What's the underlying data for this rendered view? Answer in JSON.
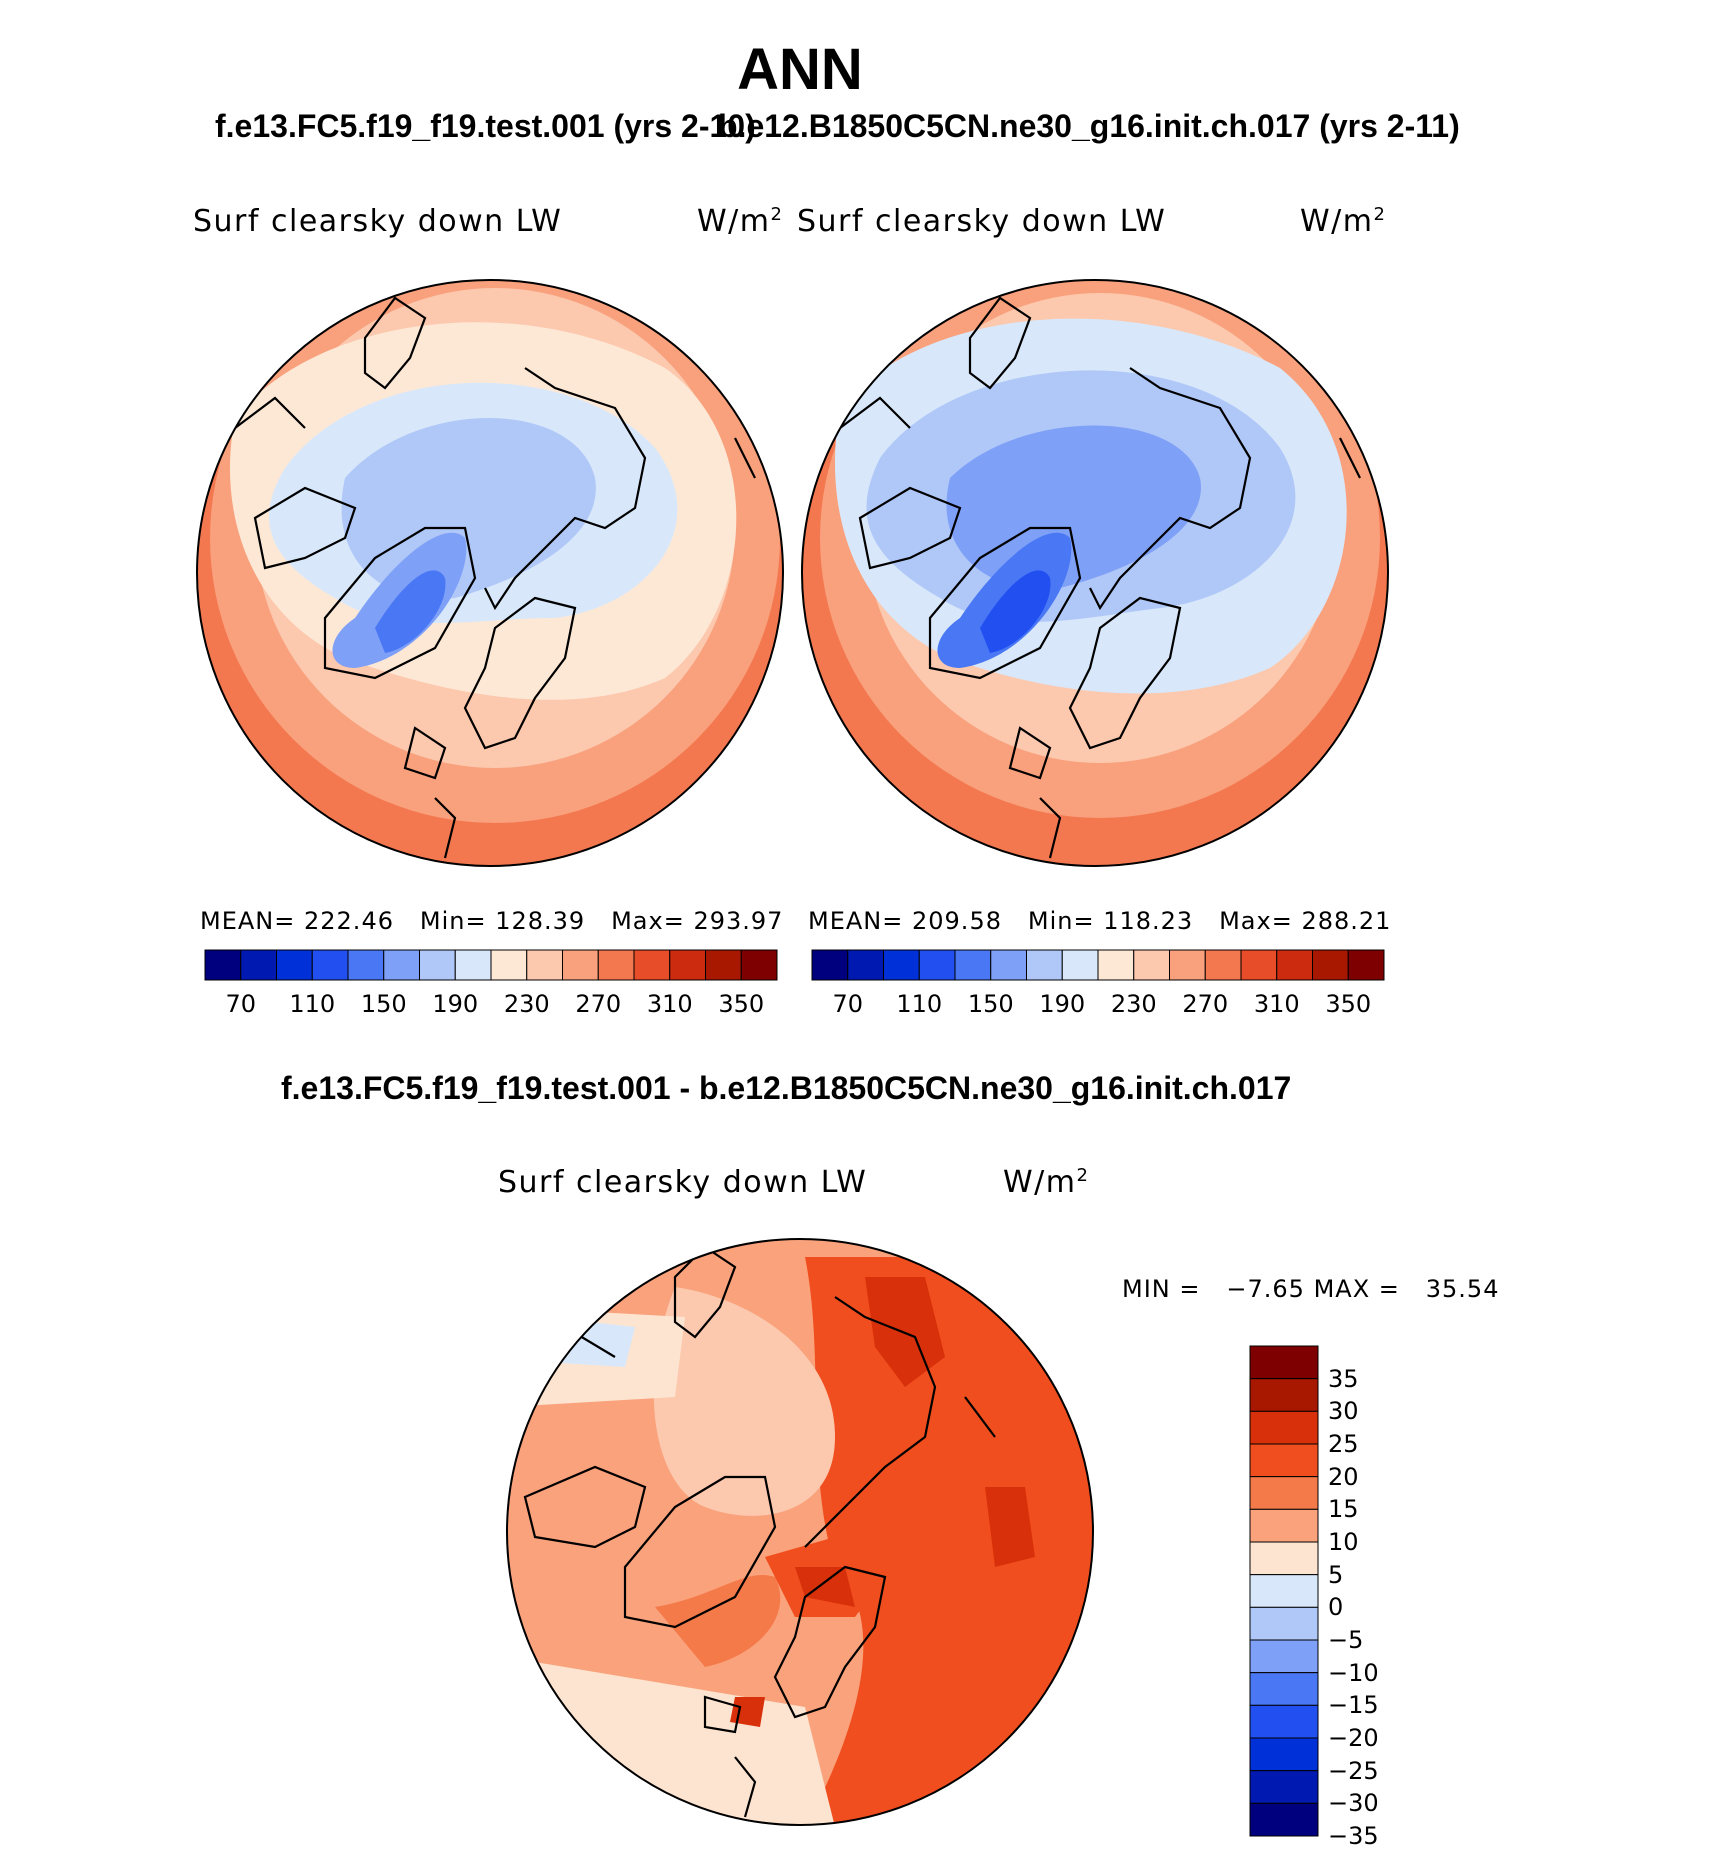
{
  "title": "ANN",
  "panel_left": {
    "case": "f.e13.FC5.f19_f19.test.001 (yrs 2-10)",
    "variable": "Surf clearsky down LW",
    "units": "W/m",
    "units_exp": "2",
    "mean_label": "MEAN=",
    "mean": "222.46",
    "min_label": "Min=",
    "min": "128.39",
    "max_label": "Max=",
    "max": "293.97"
  },
  "panel_right": {
    "case": "b.e12.B1850C5CN.ne30_g16.init.ch.017 (yrs 2-11)",
    "variable": "Surf clearsky down LW",
    "units": "W/m",
    "units_exp": "2",
    "mean_label": "MEAN=",
    "mean": "209.58",
    "min_label": "Min=",
    "min": "118.23",
    "max_label": "Max=",
    "max": "288.21"
  },
  "abs_colorbar": {
    "colors": [
      "#00007f",
      "#0019b0",
      "#0030d8",
      "#2250f0",
      "#4a78f5",
      "#7fa0f7",
      "#b0c8f8",
      "#d8e8fa",
      "#fde8d6",
      "#fcc8ae",
      "#f9a07c",
      "#f37850",
      "#e84d2a",
      "#cc2b10",
      "#a81800",
      "#7e0000"
    ],
    "tick_labels": [
      "70",
      "110",
      "150",
      "190",
      "230",
      "270",
      "310",
      "350"
    ]
  },
  "diff_panel": {
    "case": "f.e13.FC5.f19_f19.test.001 - b.e12.B1850C5CN.ne30_g16.init.ch.017",
    "variable": "Surf clearsky down LW",
    "units": "W/m",
    "units_exp": "2",
    "min_label": "MIN =",
    "min": "−7.65",
    "max_label": "MAX =",
    "max": "35.54"
  },
  "diff_colorbar": {
    "colors": [
      "#7e0000",
      "#a81800",
      "#d8300a",
      "#f04e1e",
      "#f57a4a",
      "#f9a27c",
      "#fde4d0",
      "#d8e8fa",
      "#b0c8f8",
      "#7fa0f7",
      "#4a78f5",
      "#2250f0",
      "#0030d8",
      "#0019b0",
      "#00007f"
    ],
    "tick_labels": [
      "35",
      "30",
      "25",
      "20",
      "15",
      "10",
      "5",
      "0",
      "−5",
      "−10",
      "−15",
      "−20",
      "−25",
      "−30",
      "−35"
    ]
  },
  "chart_data": [
    {
      "type": "heatmap",
      "title": "Surf clearsky down LW",
      "subtitle": "f.e13.FC5.f19_f19.test.001 (yrs 2-10)",
      "projection": "north polar stereographic",
      "units": "W/m2",
      "mean": 222.46,
      "min": 128.39,
      "max": 293.97,
      "levels": [
        70,
        90,
        110,
        130,
        150,
        170,
        190,
        210,
        230,
        250,
        270,
        290,
        310,
        330,
        350
      ]
    },
    {
      "type": "heatmap",
      "title": "Surf clearsky down LW",
      "subtitle": "b.e12.B1850C5CN.ne30_g16.init.ch.017 (yrs 2-11)",
      "projection": "north polar stereographic",
      "units": "W/m2",
      "mean": 209.58,
      "min": 118.23,
      "max": 288.21,
      "levels": [
        70,
        90,
        110,
        130,
        150,
        170,
        190,
        210,
        230,
        250,
        270,
        290,
        310,
        330,
        350
      ]
    },
    {
      "type": "heatmap",
      "title": "Surf clearsky down LW",
      "subtitle": "f.e13.FC5.f19_f19.test.001 - b.e12.B1850C5CN.ne30_g16.init.ch.017",
      "projection": "north polar stereographic",
      "units": "W/m2",
      "min": -7.65,
      "max": 35.54,
      "levels": [
        -35,
        -30,
        -25,
        -20,
        -15,
        -10,
        -5,
        0,
        5,
        10,
        15,
        20,
        25,
        30,
        35
      ]
    }
  ]
}
